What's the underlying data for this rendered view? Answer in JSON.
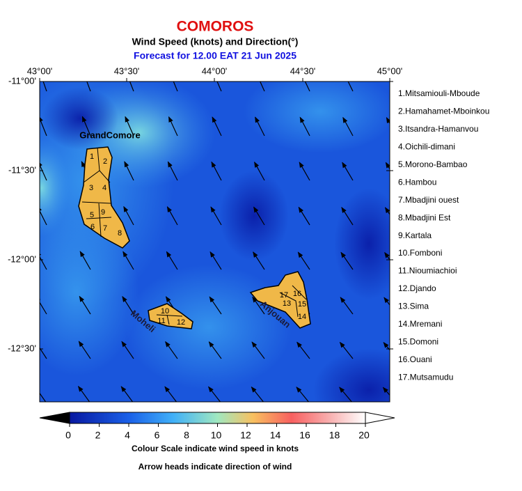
{
  "header": {
    "title": "COMOROS",
    "subtitle": "Wind Speed (knots) and Direction(°)",
    "forecast": "Forecast for  12.00 EAT 21 Jun 2025"
  },
  "map": {
    "x_labels": [
      "43°00'",
      "43°30'",
      "44°00'",
      "44°30'",
      "45°00'"
    ],
    "y_labels": [
      "-11°00'",
      "-11°30'",
      "-12°00'",
      "-12°30'"
    ],
    "islands": [
      "GrandComore",
      "Moheli",
      "Anjouan"
    ],
    "region_numbers": [
      "1",
      "2",
      "3",
      "4",
      "5",
      "6",
      "7",
      "8",
      "9",
      "10",
      "11",
      "12",
      "13",
      "14",
      "15",
      "16",
      "17"
    ]
  },
  "regions": [
    "1.Mitsamiouli-Mboude",
    "2.Hamahamet-Mboinkou",
    "3.Itsandra-Hamanvou",
    "4.Oichili-dimani",
    "5.Morono-Bambao",
    "6.Hambou",
    "7.Mbadjini ouest",
    "8.Mbadjini Est",
    "9.Kartala",
    "10.Fomboni",
    "11.Nioumiachioi",
    "12.Djando",
    "13.Sima",
    "14.Mremani",
    "15.Domoni",
    "16.Ouani",
    "17.Mutsamudu"
  ],
  "colorbar": {
    "ticks": [
      0,
      2,
      4,
      6,
      8,
      10,
      12,
      14,
      16,
      18,
      20
    ],
    "caption": "Colour Scale indicate wind speed in knots",
    "note": "Arrow heads indicate direction of wind"
  }
}
